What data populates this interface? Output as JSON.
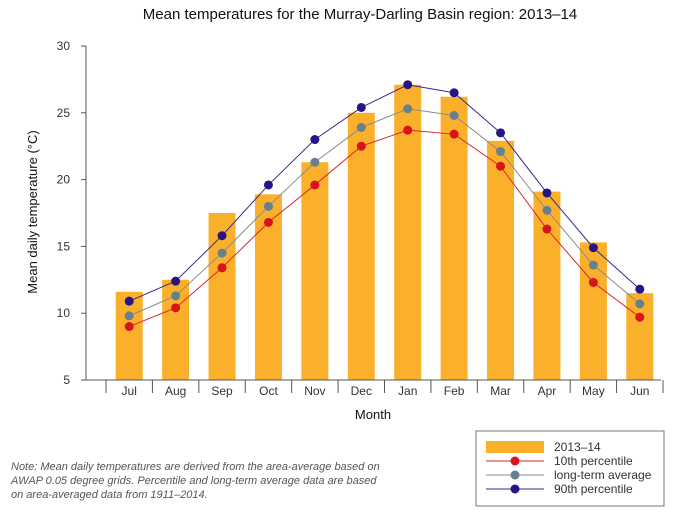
{
  "chart_data": {
    "type": "bar",
    "title": "Mean temperatures for the Murray-Darling Basin region: 2013–14",
    "xlabel": "Month",
    "ylabel": "Mean daily temperature (°C)",
    "ylim": [
      5,
      30
    ],
    "yticks": [
      5,
      10,
      15,
      20,
      25,
      30
    ],
    "categories": [
      "Jul",
      "Aug",
      "Sep",
      "Oct",
      "Nov",
      "Dec",
      "Jan",
      "Feb",
      "Mar",
      "Apr",
      "May",
      "Jun"
    ],
    "bar_series": {
      "name": "2013–14",
      "color": "#fbb02b",
      "values": [
        11.6,
        12.5,
        17.5,
        18.9,
        21.3,
        25.0,
        27.1,
        26.2,
        22.9,
        19.1,
        15.3,
        11.5
      ]
    },
    "line_series": [
      {
        "name": "10th percentile",
        "line_color": "#d62a2a",
        "marker_color": "#d9131b",
        "values": [
          9.0,
          10.4,
          13.4,
          16.8,
          19.6,
          22.5,
          23.7,
          23.4,
          21.0,
          16.3,
          12.3,
          9.7
        ]
      },
      {
        "name": "long-term average",
        "line_color": "#8c8c8c",
        "marker_color": "#66808d",
        "values": [
          9.8,
          11.3,
          14.5,
          18.0,
          21.3,
          23.9,
          25.3,
          24.8,
          22.1,
          17.7,
          13.6,
          10.7
        ]
      },
      {
        "name": "90th percentile",
        "line_color": "#3a2a8c",
        "marker_color": "#261585",
        "values": [
          10.9,
          12.4,
          15.8,
          19.6,
          23.0,
          25.4,
          27.1,
          26.5,
          23.5,
          19.0,
          14.9,
          11.8
        ]
      }
    ],
    "legend": {
      "position": "bottom-right"
    }
  },
  "note": "Note: Mean daily temperatures are derived from the area-average based on AWAP 0.05 degree grids. Percentile and long-term average data are based on area-averaged data from 1911–2014."
}
